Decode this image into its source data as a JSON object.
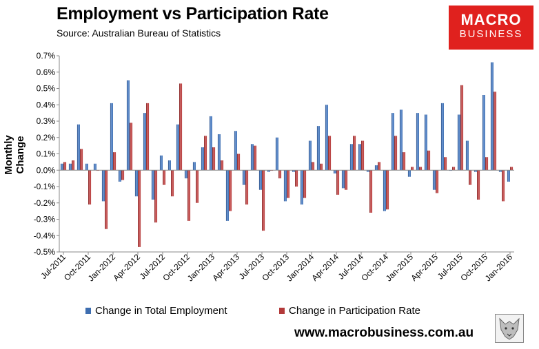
{
  "title": "Employment vs Participation Rate",
  "subtitle": "Source: Australian Bureau of Statistics",
  "logo": {
    "line1": "MACRO",
    "line2": "BUSINESS"
  },
  "website": "www.macrobusiness.com.au",
  "colors": {
    "employment": "#3e6eb0",
    "participation": "#b33a3a",
    "logo_bg": "#e0211e"
  },
  "chart_data": {
    "type": "bar",
    "ylabel": "Monthly Change",
    "ylim": [
      -0.5,
      0.7
    ],
    "y_ticks": [
      "0.7%",
      "0.6%",
      "0.5%",
      "0.4%",
      "0.3%",
      "0.2%",
      "0.1%",
      "0.0%",
      "-0.1%",
      "-0.2%",
      "-0.3%",
      "-0.4%",
      "-0.5%"
    ],
    "categories": [
      "Jul-2011",
      "Aug-2011",
      "Sep-2011",
      "Oct-2011",
      "Nov-2011",
      "Dec-2011",
      "Jan-2012",
      "Feb-2012",
      "Mar-2012",
      "Apr-2012",
      "May-2012",
      "Jun-2012",
      "Jul-2012",
      "Aug-2012",
      "Sep-2012",
      "Oct-2012",
      "Nov-2012",
      "Dec-2012",
      "Jan-2013",
      "Feb-2013",
      "Mar-2013",
      "Apr-2013",
      "May-2013",
      "Jun-2013",
      "Jul-2013",
      "Aug-2013",
      "Sep-2013",
      "Oct-2013",
      "Nov-2013",
      "Dec-2013",
      "Jan-2014",
      "Feb-2014",
      "Mar-2014",
      "Apr-2014",
      "May-2014",
      "Jun-2014",
      "Jul-2014",
      "Aug-2014",
      "Sep-2014",
      "Oct-2014",
      "Nov-2014",
      "Dec-2014",
      "Jan-2015",
      "Feb-2015",
      "Mar-2015",
      "Apr-2015",
      "May-2015",
      "Jun-2015",
      "Jul-2015",
      "Aug-2015",
      "Sep-2015",
      "Oct-2015",
      "Nov-2015",
      "Dec-2015",
      "Jan-2016"
    ],
    "x_tick_labels": [
      "Jul-2011",
      "Oct-2011",
      "Jan-2012",
      "Apr-2012",
      "Jul-2012",
      "Oct-2012",
      "Jan-2013",
      "Apr-2013",
      "Jul-2013",
      "Oct-2013",
      "Jan-2014",
      "Apr-2014",
      "Jul-2014",
      "Oct-2014",
      "Jan-2015",
      "Apr-2015",
      "Jul-2015",
      "Oct-2015",
      "Jan-2016"
    ],
    "series": [
      {
        "name": "Change in Total Employment",
        "values": [
          0.04,
          0.04,
          0.28,
          0.04,
          0.04,
          -0.19,
          0.41,
          -0.07,
          0.55,
          -0.16,
          0.35,
          -0.18,
          0.09,
          0.06,
          0.28,
          -0.05,
          0.05,
          0.14,
          0.33,
          0.22,
          -0.31,
          0.24,
          -0.09,
          0.16,
          -0.12,
          -0.01,
          0.2,
          -0.19,
          -0.01,
          -0.21,
          0.18,
          0.27,
          0.4,
          -0.02,
          -0.11,
          0.16,
          0.16,
          -0.01,
          0.03,
          -0.25,
          0.35,
          0.37,
          -0.04,
          0.35,
          0.34,
          -0.12,
          0.41,
          0.0,
          0.34,
          0.18,
          -0.01,
          0.46,
          0.66,
          -0.01,
          -0.07
        ]
      },
      {
        "name": "Change in Participation Rate",
        "values": [
          0.05,
          0.06,
          0.13,
          -0.21,
          0.0,
          -0.36,
          0.11,
          -0.06,
          0.29,
          -0.47,
          0.41,
          -0.32,
          -0.09,
          -0.16,
          0.53,
          -0.31,
          -0.2,
          0.21,
          0.14,
          0.06,
          -0.25,
          0.1,
          -0.21,
          0.15,
          -0.37,
          0.0,
          -0.05,
          -0.17,
          -0.1,
          -0.17,
          0.05,
          0.04,
          0.21,
          -0.15,
          -0.12,
          0.21,
          0.18,
          -0.26,
          0.05,
          -0.24,
          0.21,
          0.11,
          0.02,
          0.02,
          0.12,
          -0.14,
          0.08,
          0.02,
          0.52,
          -0.09,
          -0.18,
          0.08,
          0.48,
          -0.19,
          0.02
        ]
      }
    ],
    "legend_position": "bottom",
    "grid": false
  }
}
